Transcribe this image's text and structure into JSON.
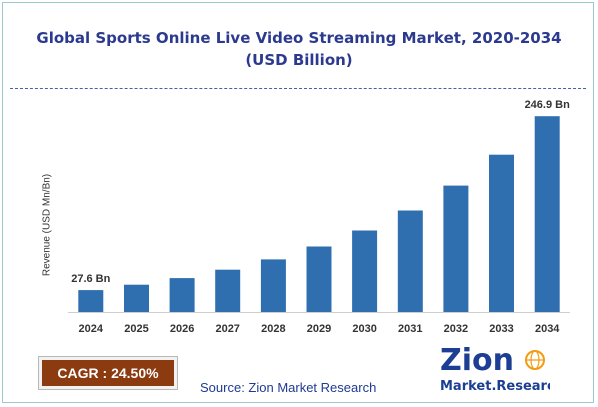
{
  "header": {
    "title_line1": "Global Sports Online Live Video Streaming Market, 2020-2034",
    "title_line2": "(USD Billion)"
  },
  "chart_data": {
    "type": "bar",
    "categories": [
      "2024",
      "2025",
      "2026",
      "2027",
      "2028",
      "2029",
      "2030",
      "2031",
      "2032",
      "2033",
      "2034"
    ],
    "values": [
      27.6,
      34.4,
      42.8,
      53.3,
      66.3,
      82.6,
      102.8,
      128.0,
      159.4,
      198.4,
      246.9
    ],
    "ylabel": "Revenue (USD Mn/Bn)",
    "ylim": [
      0,
      280
    ],
    "bar_color": "#2f6fb0",
    "data_labels": {
      "2024": "27.6 Bn",
      "2034": "246.9 Bn"
    },
    "grid": false,
    "legend": "none"
  },
  "cagr": {
    "label": "CAGR : 24.50%"
  },
  "source": "Source: Zion Market Research",
  "logo": {
    "word": "Zion",
    "tagline": "Market.Research",
    "color_primary": "#1c3f94",
    "color_accent": "#f39c12"
  }
}
